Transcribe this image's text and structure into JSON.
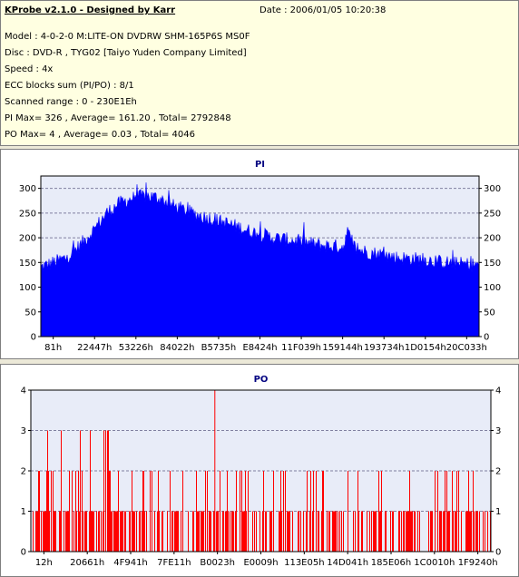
{
  "info": {
    "title": "KProbe v2.1.0 - Designed by Karr",
    "date": "Date : 2006/01/05 10:20:38",
    "model": "Model : 4-0-2-0 M:LITE-ON DVDRW SHM-165P6S MS0F",
    "disc": "Disc : DVD-R , TYG02 [Taiyo Yuden Company Limited]",
    "speed": "Speed : 4x",
    "ecc": "ECC blocks sum (PI/PO) : 8/1",
    "range": "Scanned range : 0 - 230E1Eh",
    "pi_stats": "PI Max= 326 , Average= 161.20 , Total= 2792848",
    "po_stats": "PO Max= 4 , Average= 0.03 , Total= 4046"
  },
  "colors": {
    "pi": "#0000ff",
    "po": "#ff0000",
    "plot_bg": "#e8ecf8",
    "grid": "#8080a0"
  },
  "chart_data": [
    {
      "type": "area",
      "title": "PI",
      "ylim": [
        0,
        325
      ],
      "yticks": [
        0,
        50,
        100,
        150,
        200,
        250,
        300
      ],
      "x_tick_labels": [
        "81h",
        "22447h",
        "53226h",
        "84022h",
        "B5735h",
        "E8424h",
        "11F039h",
        "159144h",
        "193734h",
        "1D0154h",
        "20C033h"
      ],
      "grid": true,
      "profile_x": [
        0.0,
        0.03,
        0.06,
        0.09,
        0.12,
        0.15,
        0.18,
        0.21,
        0.24,
        0.27,
        0.3,
        0.33,
        0.36,
        0.39,
        0.42,
        0.45,
        0.48,
        0.51,
        0.54,
        0.57,
        0.6,
        0.63,
        0.66,
        0.69,
        0.7,
        0.71,
        0.72,
        0.75,
        0.78,
        0.81,
        0.84,
        0.87,
        0.9,
        0.93,
        0.96,
        1.0
      ],
      "profile_y": [
        140,
        150,
        160,
        185,
        215,
        250,
        270,
        280,
        285,
        280,
        265,
        255,
        245,
        238,
        230,
        222,
        212,
        205,
        198,
        195,
        190,
        186,
        183,
        182,
        212,
        190,
        177,
        170,
        166,
        160,
        158,
        156,
        152,
        149,
        147,
        145
      ],
      "max": 326
    },
    {
      "type": "bar",
      "title": "PO",
      "ylim": [
        0,
        4
      ],
      "yticks": [
        0,
        1,
        2,
        3,
        4
      ],
      "x_tick_labels": [
        "12h",
        "20661h",
        "4F941h",
        "7FE11h",
        "B0023h",
        "E0009h",
        "113E05h",
        "14D041h",
        "185E06h",
        "1C0010h",
        "1F9240h"
      ],
      "grid": true,
      "max": 4
    }
  ]
}
